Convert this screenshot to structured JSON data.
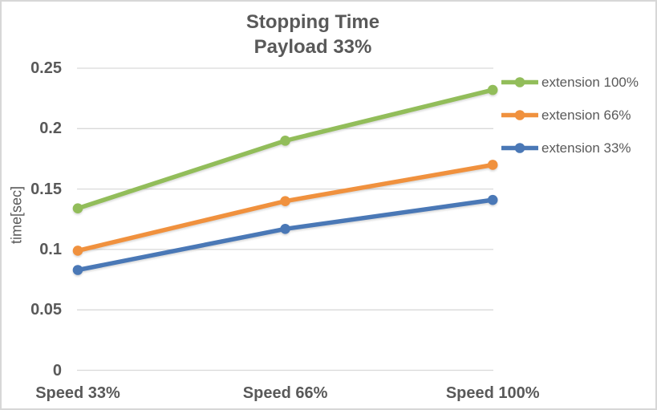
{
  "chart_data": {
    "type": "line",
    "title": "Stopping Time",
    "subtitle": "Payload 33%",
    "ylabel": "time[sec]",
    "xlabel": "",
    "categories": [
      "Speed 33%",
      "Speed 66%",
      "Speed 100%"
    ],
    "series": [
      {
        "name": "extension 100%",
        "color": "#92BD5A",
        "values": [
          0.134,
          0.19,
          0.232
        ]
      },
      {
        "name": "extension 66%",
        "color": "#F0913E",
        "values": [
          0.099,
          0.14,
          0.17
        ]
      },
      {
        "name": "extension 33%",
        "color": "#4A78B6",
        "values": [
          0.083,
          0.117,
          0.141
        ]
      }
    ],
    "ylim": [
      0,
      0.25
    ],
    "yticks": [
      0,
      0.05,
      0.1,
      0.15,
      0.2,
      0.25
    ],
    "ytick_labels": [
      "0",
      "0.05",
      "0.1",
      "0.15",
      "0.2",
      "0.25"
    ],
    "grid": "horizontal",
    "legend_position": "right",
    "text_color": "#595959",
    "gridline_color": "#D9D9D9",
    "background_color": "#FFFFFF"
  }
}
